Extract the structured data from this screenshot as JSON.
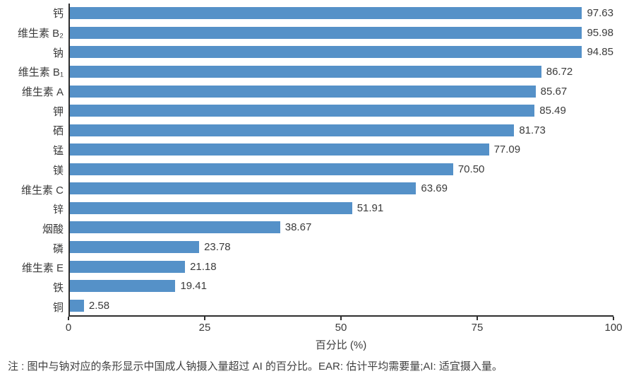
{
  "chart_data": {
    "type": "bar",
    "orientation": "horizontal",
    "title": "",
    "categories": [
      "钙",
      "维生素 B₂",
      "钠",
      "维生素 B₁",
      "维生素 A",
      "钾",
      "硒",
      "锰",
      "镁",
      "维生素 C",
      "锌",
      "烟酸",
      "磷",
      "维生素 E",
      "铁",
      "铜"
    ],
    "values": [
      97.63,
      95.98,
      94.85,
      86.72,
      85.67,
      85.49,
      81.73,
      77.09,
      70.5,
      63.69,
      51.91,
      38.67,
      23.78,
      21.18,
      19.41,
      2.58
    ],
    "value_labels": [
      "97.63",
      "95.98",
      "94.85",
      "86.72",
      "85.67",
      "85.49",
      "81.73",
      "77.09",
      "70.50",
      "63.69",
      "51.91",
      "38.67",
      "23.78",
      "21.18",
      "19.41",
      "2.58"
    ],
    "xlabel": "百分比 (%)",
    "x_ticks": [
      "0",
      "25",
      "50",
      "75",
      "100"
    ],
    "x_tick_values": [
      0,
      25,
      50,
      75,
      100
    ],
    "xlim": [
      0,
      100
    ],
    "grid": false,
    "legend": false,
    "bar_color": "#5591C8",
    "axis_color": "#2e2e2e",
    "text_color": "#3b3b3b"
  },
  "note": "注 : 图中与钠对应的条形显示中国成人钠摄入量超过 AI 的百分比。EAR: 估计平均需要量;AI: 适宜摄入量。"
}
